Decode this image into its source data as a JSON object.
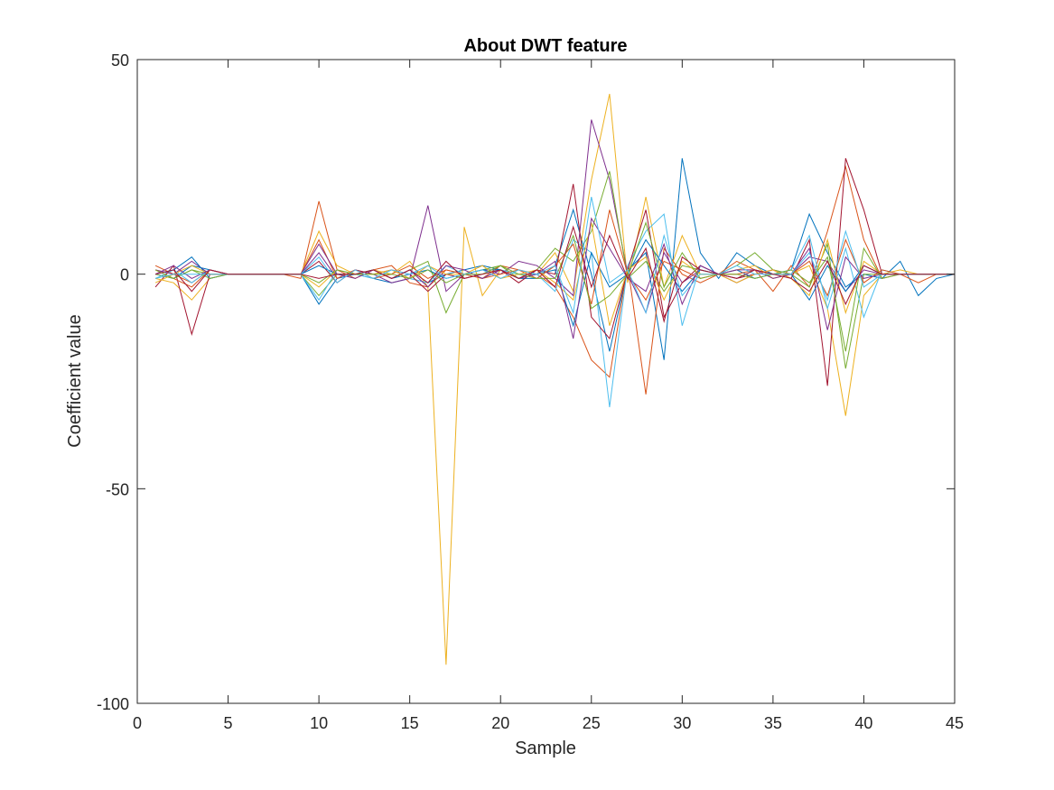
{
  "chart_data": {
    "type": "line",
    "title": "About DWT feature",
    "xlabel": "Sample",
    "ylabel": "Coefficient value",
    "xlim": [
      0,
      45
    ],
    "ylim": [
      -100,
      50
    ],
    "xticks": [
      0,
      5,
      10,
      15,
      20,
      25,
      30,
      35,
      40,
      45
    ],
    "yticks": [
      -100,
      -50,
      0,
      50
    ],
    "xtick_labels": [
      "0",
      "5",
      "10",
      "15",
      "20",
      "25",
      "30",
      "35",
      "40",
      "45"
    ],
    "ytick_labels": [
      "-100",
      "-50",
      "0",
      "50"
    ],
    "grid": false,
    "legend": "none",
    "x": [
      1,
      2,
      3,
      4,
      5,
      6,
      7,
      8,
      9,
      10,
      11,
      12,
      13,
      14,
      15,
      16,
      17,
      18,
      19,
      20,
      21,
      22,
      23,
      24,
      25,
      26,
      27,
      28,
      29,
      30,
      31,
      32,
      33,
      34,
      35,
      36,
      37,
      38,
      39,
      40,
      41,
      42,
      43,
      44,
      45
    ],
    "colors": [
      "#0072BD",
      "#D95319",
      "#EDB120",
      "#7E2F8E",
      "#77AC30",
      "#4DBEEE",
      "#A2142F"
    ],
    "series": [
      {
        "values": [
          0,
          -1,
          2,
          1,
          0,
          0,
          0,
          0,
          0,
          -7,
          -1,
          0,
          -1,
          -2,
          -1,
          -2,
          0,
          1,
          2,
          1,
          -1,
          -1,
          2,
          15,
          0,
          -18,
          1,
          5,
          -20,
          27,
          5,
          -1,
          5,
          2,
          0,
          1,
          14,
          5,
          -3,
          0,
          -1,
          3,
          -5,
          -1,
          0
        ]
      },
      {
        "values": [
          2,
          0,
          -2,
          1,
          0,
          0,
          0,
          0,
          -1,
          17,
          1,
          -1,
          1,
          2,
          -2,
          -3,
          1,
          0,
          -1,
          2,
          1,
          0,
          -3,
          -10,
          -20,
          -24,
          2,
          -28,
          6,
          0,
          -2,
          0,
          3,
          1,
          -4,
          2,
          -3,
          10,
          25,
          8,
          -1,
          0,
          -2,
          0,
          0
        ]
      },
      {
        "values": [
          -1,
          -2,
          -6,
          -1,
          0,
          0,
          0,
          0,
          0,
          10,
          2,
          0,
          1,
          0,
          3,
          -3,
          -91,
          11,
          -5,
          1,
          0,
          0,
          5,
          -4,
          22,
          42,
          -2,
          18,
          -3,
          9,
          0,
          0,
          1,
          2,
          -1,
          0,
          2,
          -8,
          -33,
          -5,
          0,
          1,
          0,
          0,
          0
        ]
      },
      {
        "values": [
          1,
          0,
          3,
          0,
          0,
          0,
          0,
          0,
          0,
          5,
          -1,
          1,
          0,
          -2,
          -1,
          16,
          -4,
          0,
          1,
          0,
          3,
          2,
          -1,
          -5,
          36,
          22,
          0,
          -9,
          5,
          -2,
          1,
          0,
          -2,
          0,
          1,
          0,
          4,
          3,
          -4,
          1,
          0,
          0,
          0,
          0,
          0
        ]
      },
      {
        "values": [
          0,
          -1,
          1,
          0,
          0,
          0,
          0,
          0,
          0,
          -5,
          0,
          0,
          1,
          -1,
          1,
          3,
          -9,
          0,
          1,
          2,
          -1,
          1,
          6,
          3,
          10,
          24,
          -1,
          3,
          -4,
          2,
          1,
          0,
          2,
          5,
          1,
          0,
          -3,
          7,
          -22,
          0,
          0,
          0,
          0,
          0,
          0
        ]
      },
      {
        "values": [
          -1,
          1,
          -2,
          1,
          0,
          0,
          0,
          0,
          0,
          -6,
          1,
          0,
          -1,
          1,
          -1,
          -2,
          2,
          0,
          -1,
          1,
          0,
          0,
          -4,
          8,
          5,
          -31,
          2,
          10,
          14,
          -12,
          2,
          0,
          -1,
          1,
          0,
          1,
          9,
          -8,
          6,
          -10,
          1,
          0,
          0,
          0,
          0
        ]
      },
      {
        "values": [
          -3,
          2,
          -14,
          0,
          0,
          0,
          0,
          0,
          0,
          3,
          -2,
          1,
          0,
          1,
          0,
          -4,
          0,
          -1,
          0,
          1,
          -2,
          1,
          0,
          21,
          -10,
          -15,
          1,
          15,
          -10,
          -2,
          2,
          0,
          -1,
          0,
          1,
          -1,
          8,
          -26,
          27,
          15,
          0,
          0,
          0,
          0,
          0
        ]
      },
      {
        "values": [
          0,
          1,
          4,
          -1,
          0,
          0,
          0,
          0,
          0,
          2,
          0,
          0,
          1,
          -1,
          0,
          1,
          -1,
          0,
          1,
          1,
          -1,
          0,
          1,
          -12,
          5,
          -3,
          0,
          8,
          2,
          -4,
          1,
          0,
          1,
          -1,
          0,
          0,
          -6,
          2,
          -4,
          2,
          0,
          0,
          0,
          0,
          0
        ]
      },
      {
        "values": [
          1,
          -1,
          -3,
          1,
          0,
          0,
          0,
          0,
          0,
          8,
          -1,
          1,
          -1,
          0,
          2,
          -1,
          1,
          0,
          -1,
          0,
          1,
          -1,
          2,
          7,
          -7,
          15,
          0,
          -6,
          3,
          1,
          -1,
          0,
          0,
          1,
          0,
          0,
          3,
          -5,
          8,
          -2,
          1,
          0,
          0,
          0,
          0
        ]
      },
      {
        "values": [
          -2,
          0,
          2,
          0,
          0,
          0,
          0,
          0,
          0,
          -3,
          1,
          0,
          0,
          1,
          -1,
          2,
          0,
          0,
          2,
          -1,
          0,
          1,
          -2,
          -6,
          12,
          -12,
          1,
          4,
          -6,
          3,
          0,
          0,
          -2,
          0,
          1,
          -1,
          -5,
          8,
          -9,
          3,
          0,
          0,
          0,
          0,
          0
        ]
      },
      {
        "values": [
          0,
          2,
          -1,
          1,
          0,
          0,
          0,
          0,
          0,
          7,
          0,
          -1,
          1,
          -1,
          1,
          -3,
          2,
          1,
          -1,
          1,
          -1,
          0,
          3,
          -15,
          13,
          6,
          -1,
          -4,
          7,
          -7,
          2,
          0,
          1,
          1,
          -1,
          0,
          6,
          -13,
          4,
          -1,
          0,
          0,
          0,
          0,
          0
        ]
      },
      {
        "values": [
          1,
          -1,
          1,
          -1,
          0,
          0,
          0,
          0,
          0,
          -2,
          1,
          0,
          0,
          0,
          -1,
          1,
          -2,
          0,
          0,
          2,
          0,
          -1,
          -1,
          9,
          -8,
          -5,
          0,
          12,
          -3,
          5,
          -1,
          0,
          0,
          -1,
          0,
          1,
          -2,
          4,
          -18,
          6,
          -1,
          0,
          0,
          0,
          0
        ]
      },
      {
        "values": [
          -1,
          0,
          0,
          0,
          0,
          0,
          0,
          0,
          0,
          4,
          -2,
          1,
          -1,
          1,
          0,
          2,
          -1,
          0,
          1,
          -1,
          1,
          0,
          2,
          -9,
          18,
          -2,
          1,
          -9,
          9,
          -5,
          0,
          0,
          2,
          0,
          0,
          0,
          5,
          -6,
          10,
          -3,
          0,
          0,
          0,
          0,
          0
        ]
      },
      {
        "values": [
          0,
          1,
          -4,
          1,
          0,
          0,
          0,
          0,
          0,
          -1,
          0,
          0,
          1,
          -1,
          1,
          -2,
          3,
          -1,
          0,
          1,
          -1,
          1,
          -3,
          11,
          -3,
          9,
          -1,
          6,
          -11,
          4,
          1,
          0,
          -1,
          1,
          0,
          -1,
          -4,
          3,
          -7,
          2,
          0,
          0,
          0,
          0,
          0
        ]
      }
    ]
  }
}
